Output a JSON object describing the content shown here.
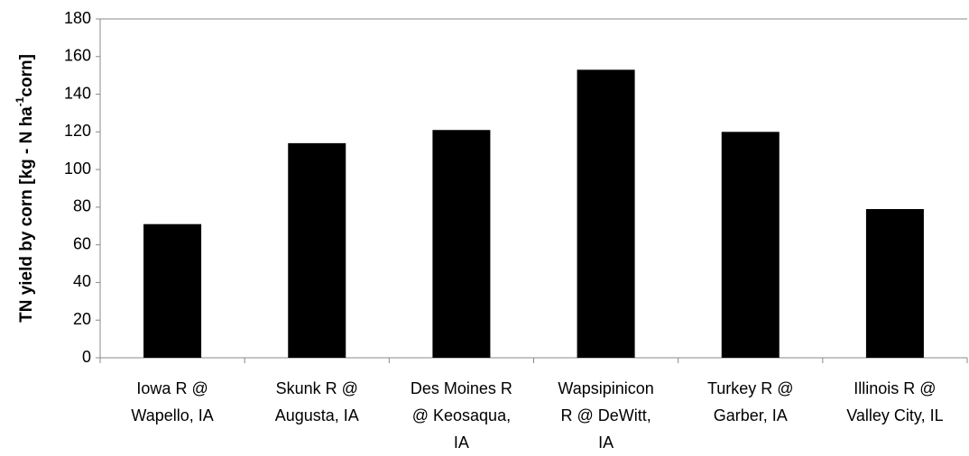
{
  "chart_data": {
    "type": "bar",
    "y_label": [
      "TN  yield by corn [kg - N ha",
      "-1",
      "corn]"
    ],
    "categories": [
      [
        "Iowa R @",
        "Wapello, IA"
      ],
      [
        "Skunk R @",
        "Augusta, IA"
      ],
      [
        "Des Moines R",
        "@ Keosaqua,",
        "IA"
      ],
      [
        "Wapsipinicon",
        "R @ DeWitt,",
        "IA"
      ],
      [
        "Turkey R @",
        "Garber, IA"
      ],
      [
        "Illinois R @",
        "Valley City, IL"
      ]
    ],
    "values": [
      71,
      114,
      121,
      153,
      120,
      79
    ],
    "color": "#000000",
    "ylim": [
      0,
      180
    ],
    "yticks": [
      0,
      20,
      40,
      60,
      80,
      100,
      120,
      140,
      160,
      180
    ],
    "grid": false
  }
}
